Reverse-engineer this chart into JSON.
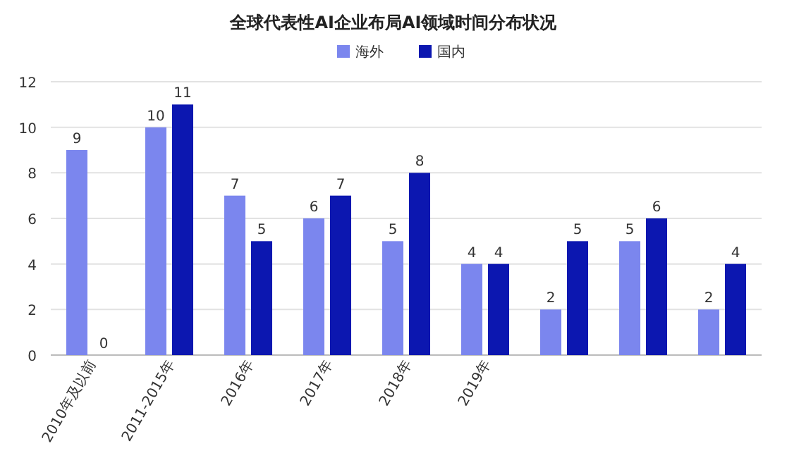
{
  "chart_data": {
    "type": "bar",
    "title": "全球代表性AI企业布局AI领域时间分布状况",
    "categories": [
      "2010年及以前",
      "2011-2015年",
      "2016年",
      "2017年",
      "2018年",
      "2019年",
      null,
      null,
      null
    ],
    "series": [
      {
        "name": "海外",
        "color": "#7b86ee",
        "values": [
          9,
          10,
          7,
          6,
          5,
          4,
          2,
          5,
          2
        ]
      },
      {
        "name": "国内",
        "color": "#0c17b0",
        "values": [
          0,
          11,
          5,
          7,
          8,
          4,
          5,
          6,
          4
        ]
      }
    ],
    "ylim": [
      0,
      12
    ],
    "yticks": [
      0,
      2,
      4,
      6,
      8,
      10,
      12
    ],
    "grid": "y",
    "legend": "top",
    "data_labels": true
  }
}
